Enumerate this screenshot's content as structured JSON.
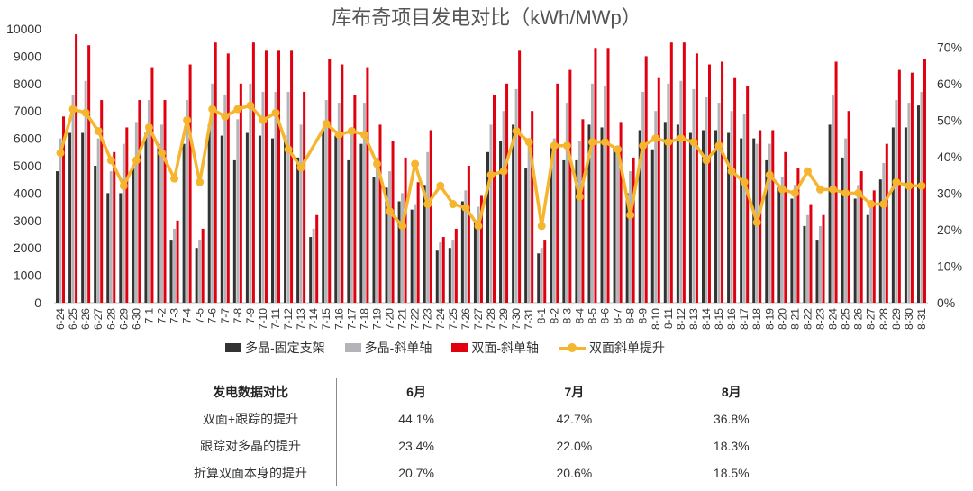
{
  "chart_data": {
    "type": "bar",
    "title": "库布奇项目发电对比（kWh/MWp）",
    "ylim": [
      0,
      10000
    ],
    "yticks": [
      0,
      1000,
      2000,
      3000,
      4000,
      5000,
      6000,
      7000,
      8000,
      9000,
      10000
    ],
    "y2lim": [
      0,
      0.75
    ],
    "y2ticks": [
      "0%",
      "10%",
      "20%",
      "30%",
      "40%",
      "50%",
      "60%",
      "70%"
    ],
    "categories": [
      "6-24",
      "6-25",
      "6-26",
      "6-27",
      "6-28",
      "6-29",
      "6-30",
      "7-1",
      "7-2",
      "7-3",
      "7-4",
      "7-5",
      "7-6",
      "7-7",
      "7-8",
      "7-9",
      "7-10",
      "7-11",
      "7-12",
      "7-13",
      "7-14",
      "7-15",
      "7-16",
      "7-17",
      "7-18",
      "7-19",
      "7-20",
      "7-21",
      "7-22",
      "7-23",
      "7-24",
      "7-25",
      "7-26",
      "7-27",
      "7-28",
      "7-29",
      "7-30",
      "7-31",
      "8-1",
      "8-2",
      "8-3",
      "8-4",
      "8-5",
      "8-6",
      "8-7",
      "8-8",
      "8-9",
      "8-10",
      "8-11",
      "8-12",
      "8-13",
      "8-14",
      "8-15",
      "8-16",
      "8-17",
      "8-18",
      "8-19",
      "8-20",
      "8-21",
      "8-22",
      "8-23",
      "8-24",
      "8-25",
      "8-26",
      "8-27",
      "8-28",
      "8-29",
      "8-30",
      "8-31"
    ],
    "series": [
      {
        "name": "多晶-固定支架",
        "color": "#333333",
        "axis": "left",
        "values": [
          4800,
          6200,
          6200,
          5000,
          4000,
          4000,
          5000,
          6200,
          5800,
          2300,
          5800,
          2000,
          6500,
          6100,
          5200,
          6200,
          6100,
          6000,
          6100,
          5300,
          2400,
          6300,
          6100,
          5200,
          5800,
          4600,
          4200,
          3700,
          3400,
          4300,
          1900,
          2000,
          3700,
          3000,
          5500,
          5900,
          6500,
          4900,
          1800,
          5700,
          5200,
          5200,
          6500,
          6400,
          5700,
          4000,
          6300,
          5600,
          6600,
          6500,
          6200,
          6300,
          6300,
          6200,
          6000,
          6000,
          5200,
          4200,
          3800,
          2800,
          2300,
          6500,
          5300,
          3800,
          3200,
          4500,
          6400,
          6400,
          7200
        ],
        "labels": []
      },
      {
        "name": "多晶-斜单轴",
        "color": "#b4b4b8",
        "axis": "left",
        "values": [
          6000,
          7600,
          8100,
          6000,
          4800,
          5800,
          6600,
          7400,
          6500,
          2700,
          7400,
          2300,
          8000,
          7600,
          6700,
          8000,
          7700,
          7700,
          7700,
          6500,
          2700,
          7400,
          7300,
          6400,
          7300,
          5300,
          4800,
          4000,
          3600,
          5500,
          2200,
          2300,
          4100,
          3500,
          6500,
          7000,
          7800,
          5900,
          2000,
          6000,
          7300,
          5900,
          8000,
          7900,
          5600,
          4800,
          7700,
          7000,
          8000,
          8100,
          7800,
          7500,
          7300,
          7000,
          6900,
          5800,
          5800,
          4600,
          4300,
          3200,
          2800,
          7600,
          6000,
          4300,
          3700,
          5100,
          7400,
          7300,
          7700
        ],
        "labels": []
      },
      {
        "name": "双面-斜单轴",
        "color": "#e00010",
        "axis": "left",
        "values": [
          6800,
          9800,
          9400,
          7400,
          5500,
          6400,
          7400,
          8600,
          7400,
          3000,
          8700,
          2700,
          9500,
          9100,
          8000,
          9500,
          9200,
          9200,
          9200,
          7700,
          3200,
          8900,
          8700,
          7600,
          8600,
          6500,
          5900,
          5300,
          4400,
          6300,
          2400,
          2700,
          5000,
          3900,
          7600,
          8000,
          9200,
          7000,
          2300,
          8000,
          8500,
          6700,
          9300,
          9300,
          6600,
          5300,
          9000,
          8200,
          9500,
          9500,
          9100,
          8700,
          8800,
          8200,
          7900,
          6300,
          6300,
          5500,
          4900,
          3600,
          3200,
          8800,
          7000,
          4800,
          4100,
          5800,
          8500,
          8400,
          8900
        ],
        "labels": []
      },
      {
        "name": "双面斜单提升",
        "color": "#F5B52E",
        "axis": "right",
        "values": [
          0.41,
          0.53,
          0.52,
          0.47,
          0.39,
          0.32,
          0.39,
          0.48,
          0.41,
          0.34,
          0.5,
          0.33,
          0.53,
          0.51,
          0.53,
          0.54,
          0.5,
          0.52,
          0.42,
          0.37,
          null,
          0.49,
          0.46,
          0.47,
          0.46,
          0.38,
          0.25,
          0.21,
          0.38,
          0.27,
          0.32,
          0.27,
          0.26,
          0.21,
          0.35,
          0.36,
          0.47,
          0.44,
          0.21,
          0.43,
          0.43,
          0.29,
          0.44,
          0.44,
          0.42,
          0.24,
          0.43,
          0.45,
          0.44,
          0.45,
          0.44,
          0.39,
          0.43,
          0.36,
          0.33,
          0.22,
          0.35,
          0.31,
          0.3,
          0.36,
          0.31,
          0.31,
          0.3,
          0.3,
          0.27,
          0.27,
          0.33,
          0.32,
          0.32
        ],
        "labels": []
      }
    ]
  },
  "legend": {
    "s1": "多晶-固定支架",
    "s2": "多晶-斜单轴",
    "s3": "双面-斜单轴",
    "s4": "双面斜单提升"
  },
  "table": {
    "header": [
      "发电数据对比",
      "6月",
      "7月",
      "8月"
    ],
    "rows": [
      [
        "双面+跟踪的提升",
        "44.1%",
        "42.7%",
        "36.8%"
      ],
      [
        "跟踪对多晶的提升",
        "23.4%",
        "22.0%",
        "18.3%"
      ],
      [
        "折算双面本身的提升",
        "20.7%",
        "20.6%",
        "18.5%"
      ]
    ]
  },
  "colors": {
    "mono_fixed": "#333333",
    "mono_track": "#b4b4b8",
    "bifacial": "#e00010",
    "uplift": "#F5B52E"
  }
}
